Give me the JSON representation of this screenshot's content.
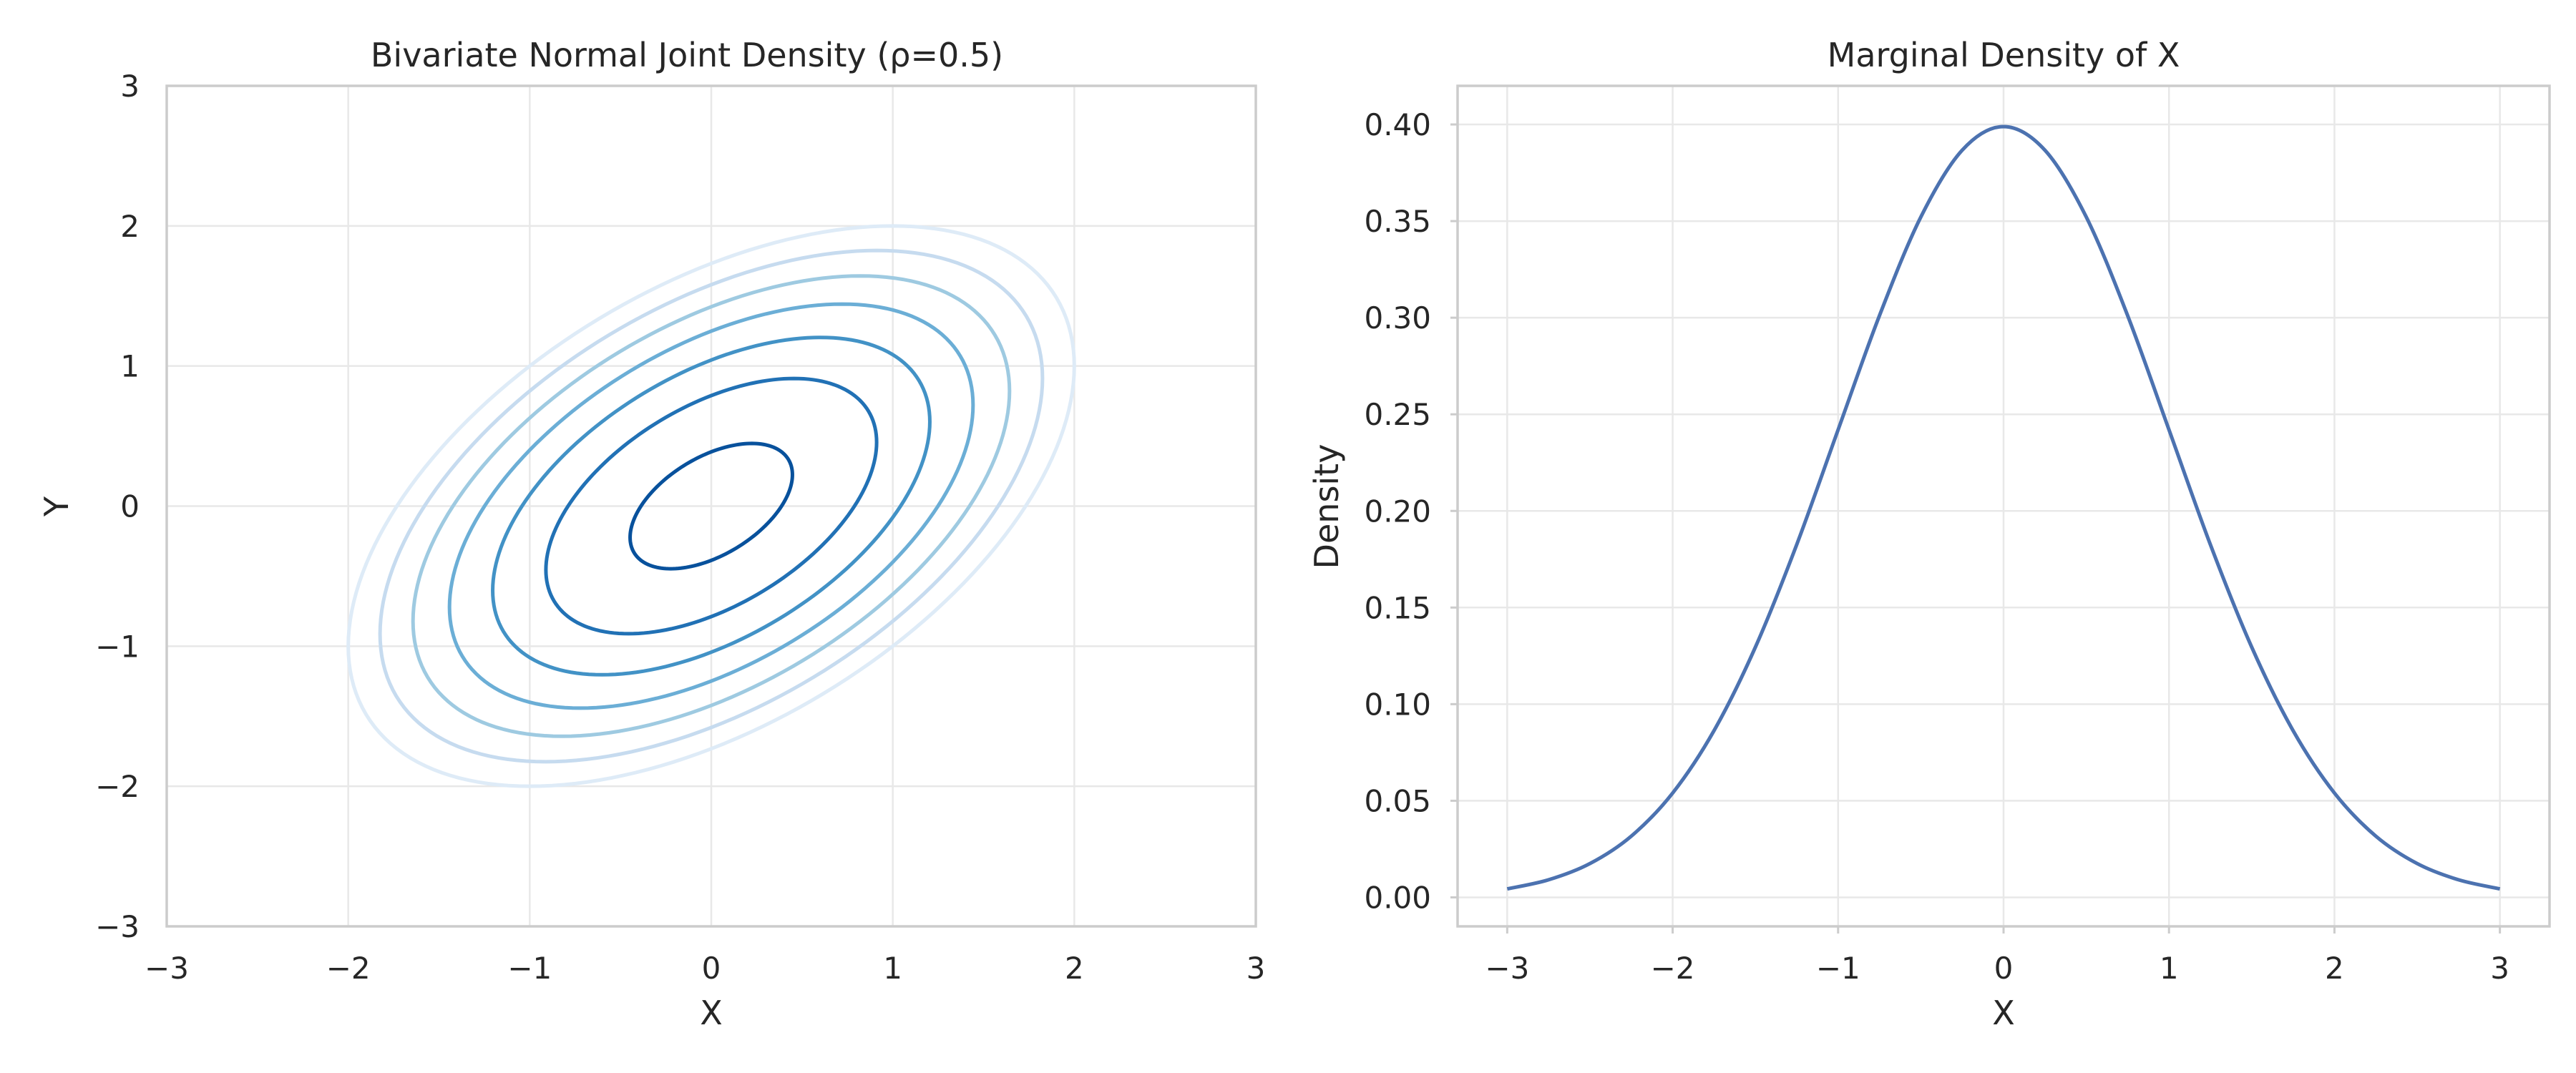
{
  "chart_data": [
    {
      "type": "contour",
      "title": "Bivariate Normal Joint Density (ρ=0.5)",
      "xlabel": "X",
      "ylabel": "Y",
      "xlim": [
        -3,
        3
      ],
      "ylim": [
        -3,
        3
      ],
      "xticks": [
        -3,
        -2,
        -1,
        0,
        1,
        2,
        3
      ],
      "yticks": [
        -3,
        -2,
        -1,
        0,
        1,
        2,
        3
      ],
      "xtick_labels": [
        "−3",
        "−2",
        "−1",
        "0",
        "1",
        "2",
        "3"
      ],
      "ytick_labels": [
        "−3",
        "−2",
        "−1",
        "0",
        "1",
        "2",
        "3"
      ],
      "grid": true,
      "rho": 0.5,
      "contour_levels_mahalanobis_sq": [
        0.2,
        0.83,
        1.45,
        2.08,
        2.7,
        3.33,
        4.0
      ],
      "contour_colors": [
        "#08519c",
        "#2171b5",
        "#4292c6",
        "#6baed6",
        "#9ecae1",
        "#c6dbef",
        "#deebf7"
      ]
    },
    {
      "type": "line",
      "title": "Marginal Density of X",
      "xlabel": "X",
      "ylabel": "Density",
      "xlim": [
        -3.3,
        3.3
      ],
      "ylim": [
        -0.015,
        0.42
      ],
      "xticks": [
        -3,
        -2,
        -1,
        0,
        1,
        2,
        3
      ],
      "yticks": [
        0.0,
        0.05,
        0.1,
        0.15,
        0.2,
        0.25,
        0.3,
        0.35,
        0.4
      ],
      "xtick_labels": [
        "−3",
        "−2",
        "−1",
        "0",
        "1",
        "2",
        "3"
      ],
      "ytick_labels": [
        "0.00",
        "0.05",
        "0.10",
        "0.15",
        "0.20",
        "0.25",
        "0.30",
        "0.35",
        "0.40"
      ],
      "grid": true,
      "series": [
        {
          "color": "#4c72b0",
          "x": [
            -3.0,
            -2.75,
            -2.5,
            -2.25,
            -2.0,
            -1.75,
            -1.5,
            -1.25,
            -1.0,
            -0.75,
            -0.5,
            -0.25,
            0.0,
            0.25,
            0.5,
            0.75,
            1.0,
            1.25,
            1.5,
            1.75,
            2.0,
            2.25,
            2.5,
            2.75,
            3.0
          ],
          "y": [
            0.0044,
            0.0091,
            0.0175,
            0.0317,
            0.054,
            0.0863,
            0.1295,
            0.1826,
            0.242,
            0.3011,
            0.3521,
            0.3867,
            0.3989,
            0.3867,
            0.3521,
            0.3011,
            0.242,
            0.1826,
            0.1295,
            0.0863,
            0.054,
            0.0317,
            0.0175,
            0.0091,
            0.0044
          ]
        }
      ]
    }
  ]
}
